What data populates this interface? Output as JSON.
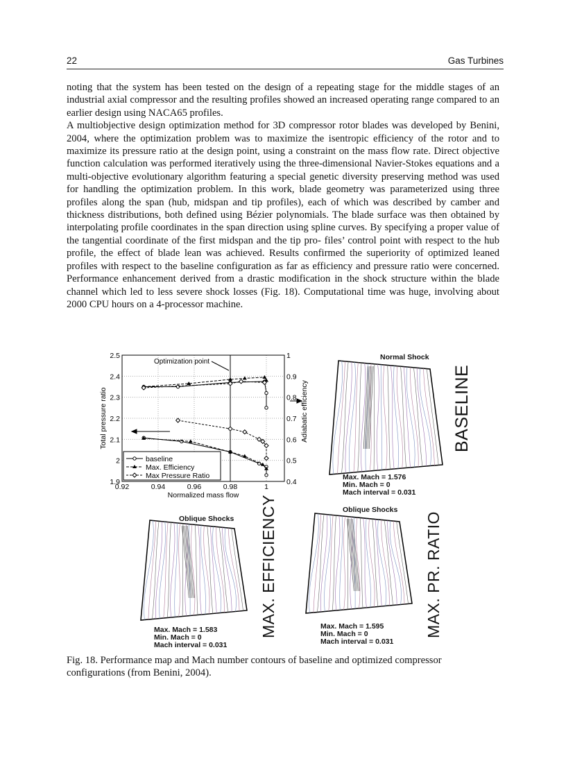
{
  "header": {
    "page_number": "22",
    "running_title": "Gas Turbines"
  },
  "body": {
    "paragraphs": [
      "noting that the system has been tested on the design of a repeating stage for the middle stages of an industrial axial compressor and the resulting profiles showed an increased operating range compared to an earlier design using NACA65 profiles.",
      "A multiobjective design optimization method for 3D compressor rotor blades was developed by Benini, 2004, where the optimization problem was to maximize the isentropic efficiency of the rotor and to maximize its pressure ratio at the design point, using a constraint on the mass flow rate. Direct objective function calculation was performed iteratively using the three-dimensional Navier-Stokes equations and a multi-objective evolutionary algorithm featuring a special genetic diversity preserving method was used for handling the optimization problem. In this work, blade geometry was parameterized using three profiles along the span (hub, midspan and tip profiles), each of which was described by camber and thickness distributions, both defined using Bézier polynomials.  The blade surface was then obtained by interpolating profile coordinates in the span direction using spline curves. By specifying a proper value of the tangential coordinate of the first midspan and the tip pro- files’ control point with respect to the hub profile, the effect of blade lean was achieved. Results confirmed the superiority of optimized leaned profiles with respect to the baseline configuration as far as efficiency and pressure ratio were concerned. Performance enhancement derived from a drastic modification in the shock structure within the blade channel which led to less severe shock losses (Fig. 18). Computational time was huge, involving about 2000 CPU hours on a 4-processor machine."
    ]
  },
  "figure": {
    "caption": "Fig. 18. Performance map and Mach number contours of baseline and optimized compressor configurations (from Benini, 2004).",
    "baseline": {
      "title": "BASELINE",
      "annotation": "Normal Shock",
      "max_mach": "Max. Mach = 1.576",
      "min_mach": "Min. Mach = 0",
      "interval": "Mach interval = 0.031"
    },
    "max_efficiency": {
      "title": "MAX. EFFICIENCY",
      "annotation": "Oblique Shocks",
      "max_mach": "Max. Mach = 1.583",
      "min_mach": "Min. Mach = 0",
      "interval": "Mach interval = 0.031"
    },
    "max_pr": {
      "title": "MAX. PR. RATIO",
      "annotation": "Oblique Shocks",
      "max_mach": "Max. Mach = 1.595",
      "min_mach": "Min. Mach = 0",
      "interval": "Mach interval = 0.031"
    }
  },
  "chart_data": {
    "type": "line",
    "xlabel": "Normalized mass flow",
    "ylabel": "Total pressure ratio",
    "y2label": "Adiabatic efficiency",
    "xlim": [
      0.92,
      1.01
    ],
    "ylim": [
      1.9,
      2.5
    ],
    "y2lim": [
      0.4,
      1.0
    ],
    "xticks": [
      "0.92",
      "0.94",
      "0.96",
      "0.98",
      "1"
    ],
    "yticks": [
      "1.9",
      "2",
      "2.1",
      "2.2",
      "2.3",
      "2.4",
      "2.5"
    ],
    "y2ticks": [
      "0.4",
      "0.5",
      "0.6",
      "0.7",
      "0.8",
      "0.9",
      "1"
    ],
    "grid": true,
    "legend_placement": "bottom-left",
    "annotation": "Optimization point",
    "optimization_x": 0.98,
    "series": [
      {
        "name": "baseline",
        "axis": "left",
        "marker": "circle",
        "points": [
          [
            0.932,
            2.107
          ],
          [
            0.953,
            2.09
          ],
          [
            0.98,
            2.04
          ],
          [
            0.996,
            1.985
          ],
          [
            1.0,
            1.97
          ],
          [
            1.0,
            1.93
          ]
        ]
      },
      {
        "name": "Max. Efficiency",
        "axis": "left",
        "marker": "triangle",
        "points": [
          [
            0.932,
            2.105
          ],
          [
            0.958,
            2.09
          ],
          [
            0.98,
            2.04
          ],
          [
            0.988,
            2.02
          ],
          [
            0.998,
            1.98
          ],
          [
            1.0,
            1.96
          ]
        ]
      },
      {
        "name": "Max Pressure Ratio",
        "axis": "left",
        "marker": "diamond",
        "points": [
          [
            0.951,
            2.19
          ],
          [
            0.98,
            2.15
          ],
          [
            0.988,
            2.135
          ],
          [
            0.996,
            2.1
          ],
          [
            0.998,
            2.09
          ],
          [
            1.0,
            2.07
          ],
          [
            1.0,
            2.01
          ]
        ]
      },
      {
        "name": "baseline",
        "axis": "right",
        "marker": "circle",
        "points": [
          [
            0.932,
            0.85
          ],
          [
            0.951,
            0.85
          ],
          [
            0.98,
            0.87
          ],
          [
            0.999,
            0.875
          ],
          [
            1.0,
            0.82
          ],
          [
            1.0,
            0.75
          ]
        ]
      },
      {
        "name": "Max. Efficiency",
        "axis": "right",
        "marker": "triangle",
        "points": [
          [
            0.932,
            0.85
          ],
          [
            0.957,
            0.865
          ],
          [
            0.98,
            0.885
          ],
          [
            0.988,
            0.89
          ],
          [
            0.999,
            0.895
          ],
          [
            1.0,
            0.88
          ]
        ]
      },
      {
        "name": "Max Pressure Ratio",
        "axis": "right",
        "marker": "diamond",
        "points": [
          [
            0.932,
            0.845
          ],
          [
            0.98,
            0.865
          ],
          [
            0.986,
            0.875
          ],
          [
            0.999,
            0.87
          ]
        ]
      }
    ]
  }
}
